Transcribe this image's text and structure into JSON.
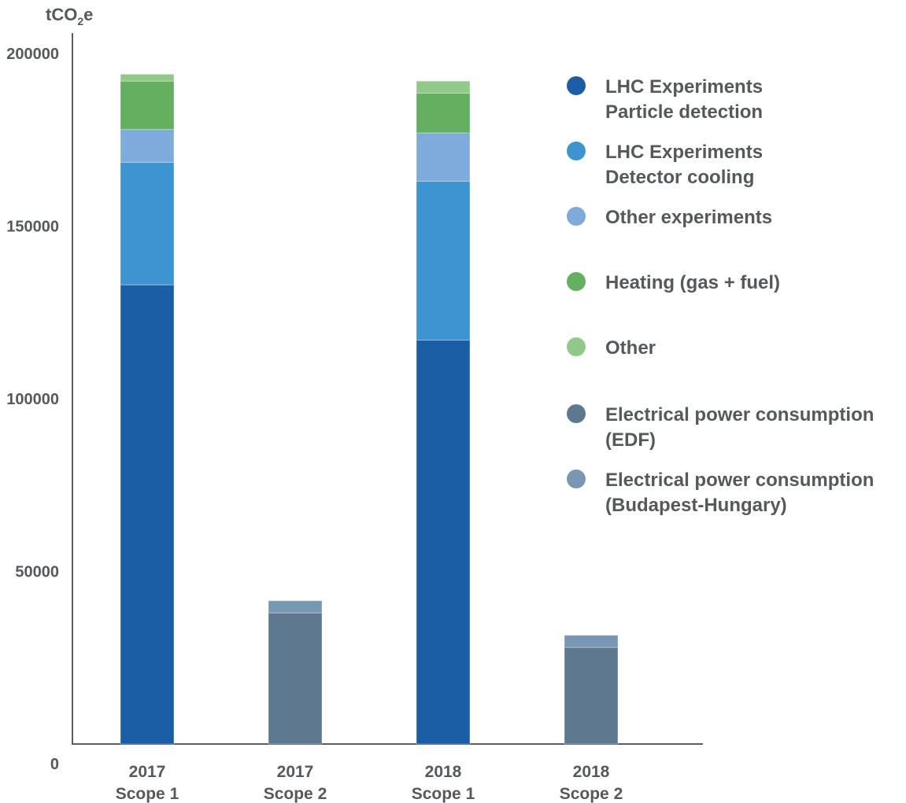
{
  "chart_data": {
    "type": "bar",
    "stacked": true,
    "title": "",
    "ylabel": "tCO₂e",
    "ylabel_parts": [
      "tCO",
      "2",
      "e"
    ],
    "xlabel": "",
    "ylim": [
      0,
      200000
    ],
    "yticks": [
      "200000",
      "150000",
      "100000",
      "50000",
      "0"
    ],
    "ytick_values": [
      200000,
      150000,
      100000,
      50000,
      0
    ],
    "categories": [
      {
        "line1": "2017",
        "line2": "Scope 1"
      },
      {
        "line1": "2017",
        "line2": "Scope 2"
      },
      {
        "line1": "2018",
        "line2": "Scope 1"
      },
      {
        "line1": "2018",
        "line2": "Scope 2"
      }
    ],
    "series": [
      {
        "name": "LHC Experiments Particle detection",
        "label_lines": [
          "LHC Experiments",
          "Particle detection"
        ],
        "color": "#1c5ea5",
        "values": [
          133000,
          0,
          117000,
          0
        ]
      },
      {
        "name": "LHC Experiments Detector cooling",
        "label_lines": [
          "LHC Experiments",
          "Detector cooling"
        ],
        "color": "#3e94d0",
        "values": [
          35500,
          0,
          46000,
          0
        ]
      },
      {
        "name": "Other experiments",
        "label_lines": [
          "Other experiments"
        ],
        "color": "#7fabda",
        "values": [
          9500,
          0,
          14000,
          0
        ]
      },
      {
        "name": "Heating (gas + fuel)",
        "label_lines": [
          "Heating (gas + fuel)"
        ],
        "color": "#63b160",
        "values": [
          14000,
          0,
          11500,
          0
        ]
      },
      {
        "name": "Other",
        "label_lines": [
          "Other"
        ],
        "color": "#92c98a",
        "values": [
          2000,
          0,
          3500,
          0
        ]
      },
      {
        "name": "Electrical power consumption (EDF)",
        "label_lines": [
          "Electrical power consumption",
          "(EDF)"
        ],
        "color": "#5e7890",
        "values": [
          0,
          38000,
          0,
          28000
        ]
      },
      {
        "name": "Electrical power consumption (Budapest-Hungary)",
        "label_lines": [
          "Electrical power consumption",
          "(Budapest-Hungary)"
        ],
        "color": "#7897b3",
        "values": [
          0,
          3500,
          0,
          3500
        ]
      }
    ],
    "legend_position": "right"
  }
}
